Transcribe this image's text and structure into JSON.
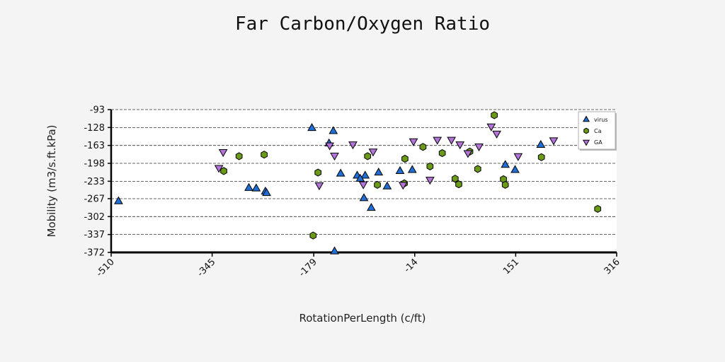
{
  "chart_data": {
    "type": "scatter",
    "title": "Far Carbon/Oxygen Ratio",
    "xlabel": "RotationPerLength (c/ft)",
    "ylabel": "Mobility (m3/s.ft.kPa)",
    "xlim": [
      -510,
      316
    ],
    "ylim": [
      -372,
      -93
    ],
    "xticks": [
      -510,
      -345,
      -179,
      -14,
      151,
      316
    ],
    "yticks": [
      -93,
      -128,
      -163,
      -198,
      -233,
      -267,
      -302,
      -337,
      -372
    ],
    "grid": "horizontal dashed",
    "legend_position": "top-right",
    "series": [
      {
        "name": "virus",
        "marker": "triangle-up",
        "color": "#1f6fd6",
        "points": [
          [
            -498,
            -272
          ],
          [
            -182,
            -129
          ],
          [
            -147,
            -135
          ],
          [
            -154,
            -159
          ],
          [
            -135,
            -218
          ],
          [
            -108,
            -222
          ],
          [
            -95,
            -222
          ],
          [
            -103,
            -228
          ],
          [
            -97,
            -266
          ],
          [
            -85,
            -285
          ],
          [
            -73,
            -216
          ],
          [
            -59,
            -243
          ],
          [
            -285,
            -246
          ],
          [
            -273,
            -247
          ],
          [
            -258,
            -253
          ],
          [
            -256,
            -256
          ],
          [
            -38,
            -213
          ],
          [
            -145,
            -370
          ],
          [
            -18,
            -211
          ],
          [
            150,
            -211
          ],
          [
            134,
            -201
          ],
          [
            192,
            -162
          ]
        ]
      },
      {
        "name": "Ca",
        "color": "#6a9a18",
        "points": [
          [
            -326,
            -213
          ],
          [
            -301,
            -184
          ],
          [
            -260,
            -181
          ],
          [
            -172,
            -216
          ],
          [
            -180,
            -339
          ],
          [
            -91,
            -184
          ],
          [
            -75,
            -240
          ],
          [
            -30,
            -189
          ],
          [
            -31,
            -237
          ],
          [
            -0.5,
            -166
          ],
          [
            11,
            -204
          ],
          [
            31,
            -178
          ],
          [
            52,
            -228
          ],
          [
            58,
            -239
          ],
          [
            76,
            -175
          ],
          [
            89,
            -209
          ],
          [
            116,
            -104
          ],
          [
            131,
            -229
          ],
          [
            134,
            -240
          ],
          [
            193,
            -186
          ],
          [
            285,
            -287
          ]
        ]
      },
      {
        "name": "GA",
        "color": "#b374d8",
        "points": [
          [
            -334,
            -207
          ],
          [
            -327,
            -176
          ],
          [
            -170,
            -241
          ],
          [
            -153,
            -163
          ],
          [
            -145,
            -183
          ],
          [
            -115,
            -161
          ],
          [
            -98,
            -239
          ],
          [
            -82,
            -175
          ],
          [
            -33,
            -240
          ],
          [
            -16,
            -155
          ],
          [
            23,
            -152
          ],
          [
            11,
            -230
          ],
          [
            46,
            -152
          ],
          [
            60,
            -161
          ],
          [
            73,
            -178
          ],
          [
            91,
            -165
          ],
          [
            111,
            -126
          ],
          [
            120,
            -140
          ],
          [
            155,
            -184
          ],
          [
            213,
            -153
          ],
          [
            266,
            -147
          ]
        ]
      }
    ]
  }
}
